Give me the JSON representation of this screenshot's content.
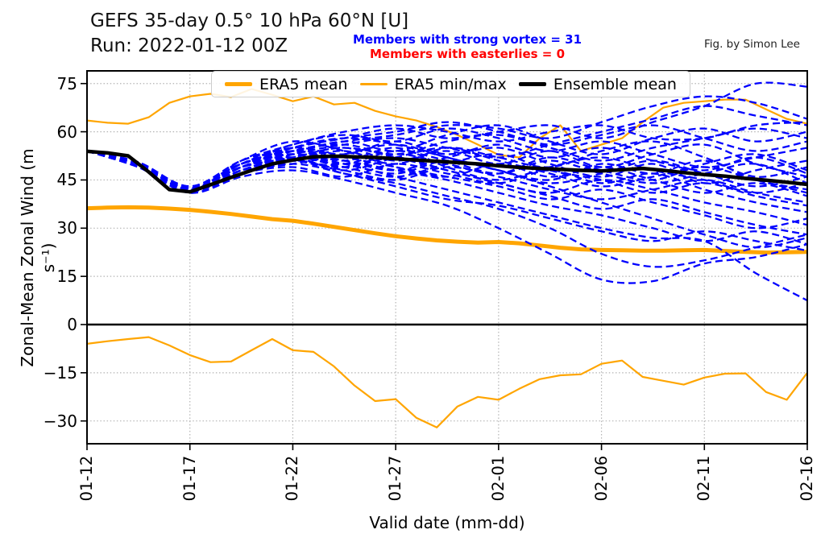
{
  "header": {
    "title_line1": "GEFS 35-day 0.5° 10 hPa 60°N [U]",
    "title_line2": "Run: 2022-01-12 00Z",
    "strong_vortex_note": "Members with strong vortex = 31",
    "easterlies_note": "Members with easterlies = 0",
    "credit": "Fig. by Simon Lee"
  },
  "chart_data": {
    "type": "line",
    "title": "GEFS 35-day 0.5° 10 hPa 60°N [U]",
    "subtitle": "Run: 2022-01-12 00Z",
    "xlabel": "Valid date (mm-dd)",
    "ylabel": "Zonal-Mean Zonal Wind (m s⁻¹)",
    "x_tick_labels": [
      "01-12",
      "01-17",
      "01-22",
      "01-27",
      "02-01",
      "02-06",
      "02-11",
      "02-16"
    ],
    "x_tick_days": [
      0,
      5,
      10,
      15,
      20,
      25,
      30,
      35
    ],
    "y_ticks": [
      75,
      60,
      45,
      30,
      15,
      0,
      -15,
      -30
    ],
    "y_tick_labels": [
      "75",
      "60",
      "45",
      "30",
      "15",
      "0",
      "−15",
      "−30"
    ],
    "xlim_days": [
      0,
      35
    ],
    "ylim": [
      -37,
      79
    ],
    "grid": "dotted",
    "legend_position": "upper center",
    "counts": {
      "members_with_strong_vortex": 31,
      "members_with_easterlies": 0
    },
    "colors": {
      "era5": "#FFA500",
      "members": "#0000FF",
      "ensemble_mean": "#000000",
      "zero_line": "#000000",
      "grid": "#b3b3b3",
      "strong_vortex_note": "#0000FF",
      "easterlies_note": "#FF0000"
    },
    "legend": [
      {
        "label": "ERA5 mean",
        "style": "thick orange line"
      },
      {
        "label": "ERA5 min/max",
        "style": "thin orange line"
      },
      {
        "label": "Ensemble mean",
        "style": "thick black line"
      }
    ],
    "sampling_note": "series arrays are daily values for days 0-35 from 2022-01-12; members sampled every 2.5 days",
    "series": {
      "era5_mean": [
        36.2,
        36.4,
        36.5,
        36.4,
        36.1,
        35.7,
        35.1,
        34.4,
        33.6,
        32.8,
        32.3,
        31.4,
        30.4,
        29.4,
        28.4,
        27.5,
        26.8,
        26.2,
        25.8,
        25.5,
        25.7,
        25.3,
        24.6,
        23.9,
        23.4,
        23.2,
        23.1,
        23.0,
        23.0,
        23.1,
        23.2,
        22.9,
        22.6,
        22.4,
        22.5,
        22.6
      ],
      "era5_max": [
        63.5,
        62.8,
        62.5,
        64.5,
        69.0,
        71.0,
        71.8,
        70.8,
        73.3,
        71.5,
        69.5,
        71.0,
        68.5,
        69.0,
        66.5,
        64.8,
        63.5,
        61.5,
        59.0,
        56.0,
        52.8,
        52.0,
        58.0,
        62.0,
        54.0,
        56.0,
        58.0,
        63.0,
        67.5,
        69.0,
        69.5,
        70.0,
        70.0,
        67.0,
        64.0,
        62.5
      ],
      "era5_min": [
        -6.0,
        -5.2,
        -4.5,
        -3.9,
        -6.5,
        -9.5,
        -11.7,
        -11.5,
        -8.0,
        -4.5,
        -8.0,
        -8.5,
        -13.0,
        -19.0,
        -23.8,
        -23.2,
        -29.0,
        -32.0,
        -25.5,
        -22.5,
        -23.4,
        -20.0,
        -17.0,
        -15.8,
        -15.5,
        -12.2,
        -11.2,
        -16.3,
        -17.5,
        -18.7,
        -16.5,
        -15.3,
        -15.2,
        -21.0,
        -23.4,
        -15.0
      ],
      "ensemble_mean": [
        53.9,
        53.4,
        52.5,
        47.5,
        42.0,
        41.3,
        43.5,
        45.8,
        48.0,
        50.0,
        51.2,
        52.2,
        52.4,
        52.2,
        52.0,
        51.6,
        51.2,
        50.8,
        50.4,
        50.0,
        49.4,
        48.9,
        48.6,
        48.3,
        48.0,
        47.8,
        48.2,
        48.6,
        48.0,
        47.3,
        46.7,
        46.2,
        45.5,
        44.9,
        44.3,
        43.6
      ]
    },
    "member_days": [
      0,
      2.5,
      5,
      7.5,
      10,
      12.5,
      15,
      17.5,
      20,
      22.5,
      25,
      27.5,
      30,
      32.5,
      35
    ],
    "members": [
      [
        54,
        50,
        42.5,
        50,
        55,
        58,
        61,
        58,
        60,
        62,
        58,
        63,
        68,
        75,
        74
      ],
      [
        54,
        49.5,
        42,
        49,
        54,
        57,
        59,
        62,
        61,
        58,
        63,
        68,
        71,
        69,
        64
      ],
      [
        54,
        50.5,
        43,
        51,
        56,
        60,
        62,
        60,
        57,
        60,
        62,
        58,
        58,
        62,
        63
      ],
      [
        54,
        49,
        41.5,
        48,
        53,
        57,
        54,
        59,
        62,
        57,
        53,
        58,
        61,
        57,
        60
      ],
      [
        54,
        50,
        42,
        50,
        55,
        53,
        57,
        53,
        56,
        52,
        55,
        51,
        48,
        52,
        47
      ],
      [
        54,
        49.5,
        42.5,
        49,
        52,
        55,
        51,
        54,
        50,
        54,
        49,
        53,
        56,
        50,
        46
      ],
      [
        54,
        50,
        42,
        51,
        57,
        54,
        50,
        55,
        52,
        49,
        54,
        57,
        52,
        46,
        49
      ],
      [
        54,
        49,
        41,
        47,
        51,
        49,
        53,
        50,
        47,
        52,
        48,
        45,
        50,
        53,
        48
      ],
      [
        54,
        50.5,
        43,
        50,
        54,
        51,
        48,
        52,
        55,
        50,
        46,
        50,
        44,
        48,
        51
      ],
      [
        54,
        49.5,
        42,
        48,
        50,
        53,
        56,
        52,
        48,
        45,
        50,
        47,
        51,
        45,
        42
      ],
      [
        54,
        49,
        41.5,
        47,
        49,
        46,
        50,
        47,
        44,
        48,
        44,
        47,
        42,
        38,
        35
      ],
      [
        54,
        50,
        42.5,
        49,
        53,
        50,
        47,
        51,
        48,
        44,
        47,
        51,
        47,
        43,
        46
      ],
      [
        54,
        50,
        42,
        50,
        52,
        48,
        52,
        55,
        51,
        47,
        43,
        46,
        49,
        45,
        41
      ],
      [
        54,
        49.5,
        42,
        48,
        51,
        54,
        49,
        46,
        50,
        46,
        49,
        45,
        41,
        44,
        40
      ],
      [
        54,
        50,
        42.5,
        50,
        54,
        51,
        55,
        49,
        45,
        49,
        52,
        48,
        45,
        41,
        44
      ],
      [
        54,
        49,
        41.5,
        48,
        52,
        49,
        46,
        50,
        53,
        48,
        45,
        41,
        44,
        40,
        37
      ],
      [
        54,
        50,
        42,
        49,
        55,
        58,
        56,
        52,
        48,
        43,
        38,
        33,
        28,
        24,
        27
      ],
      [
        54,
        49.5,
        42,
        48,
        51,
        47,
        44,
        40,
        36,
        30,
        22,
        18,
        20,
        24,
        28
      ],
      [
        54,
        49,
        41,
        46,
        48,
        45,
        41,
        37,
        30,
        22,
        14,
        13.5,
        19,
        21,
        25
      ],
      [
        54,
        50,
        42,
        49,
        52,
        50,
        46,
        42,
        38,
        34,
        30,
        27,
        26,
        16,
        7.5
      ],
      [
        54,
        49.5,
        42,
        47,
        50,
        47,
        43,
        39,
        37,
        33,
        29,
        26,
        29,
        26,
        23
      ],
      [
        54,
        50,
        42.5,
        50,
        53,
        51,
        48,
        45,
        41,
        37,
        34,
        30,
        26,
        29,
        25
      ],
      [
        54,
        49,
        41.5,
        48,
        52,
        55,
        52,
        48,
        44,
        40,
        36,
        39,
        35,
        31,
        28
      ],
      [
        54,
        50,
        42,
        49,
        54,
        52,
        49,
        46,
        43,
        39,
        42,
        38,
        34,
        30,
        33
      ],
      [
        54,
        49.5,
        42.5,
        50,
        53,
        49,
        52,
        48,
        44,
        41,
        45,
        42,
        38,
        35,
        31
      ],
      [
        54,
        50,
        42,
        50,
        56,
        59,
        57,
        61,
        58,
        54,
        57,
        53,
        49,
        52,
        55
      ],
      [
        54,
        50.5,
        43,
        51,
        55,
        58,
        60,
        63,
        60,
        56,
        59,
        62,
        58,
        54,
        57
      ],
      [
        54,
        49.5,
        42,
        49,
        54,
        56,
        53,
        57,
        59,
        55,
        51,
        55,
        58,
        61,
        58
      ],
      [
        54,
        50,
        42,
        48,
        52,
        50,
        54,
        51,
        47,
        51,
        47,
        44,
        47,
        50,
        44
      ],
      [
        54,
        49,
        41.5,
        48,
        53,
        56,
        58,
        55,
        52,
        56,
        60,
        64,
        68,
        65,
        62
      ],
      [
        54,
        50,
        42.5,
        49,
        51,
        48,
        45,
        49,
        46,
        42,
        39,
        42,
        45,
        41,
        38
      ]
    ]
  }
}
